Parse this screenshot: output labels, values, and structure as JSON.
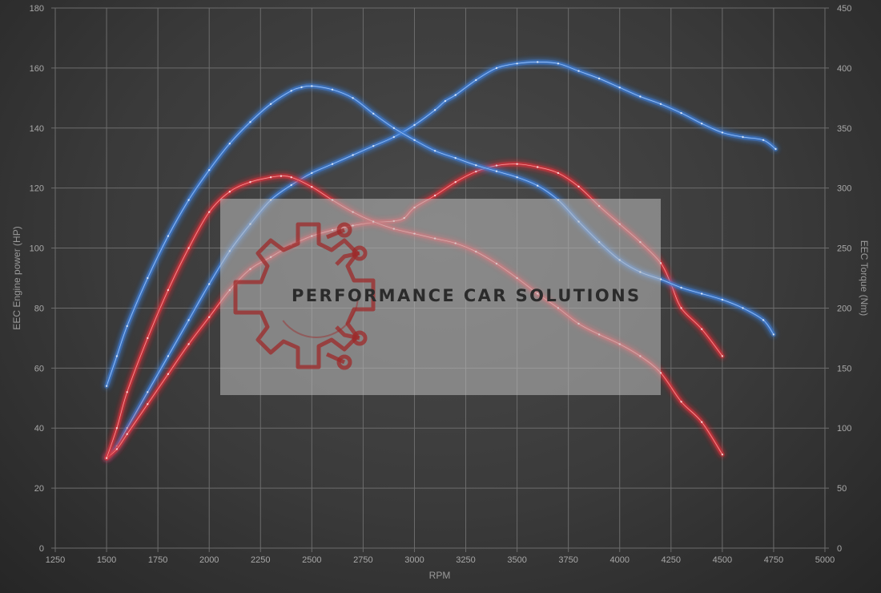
{
  "chart_data": {
    "type": "line",
    "xlabel": "RPM",
    "ylabel_left": "EEC Engine power (HP)",
    "ylabel_right": "EEC Torque (Nm)",
    "xlim": [
      1250,
      5000
    ],
    "ylim_left": [
      0,
      180
    ],
    "ylim_right": [
      0,
      450
    ],
    "x_ticks": [
      "1250",
      "1500",
      "1750",
      "2000",
      "2250",
      "2500",
      "2750",
      "3000",
      "3250",
      "3500",
      "3750",
      "4000",
      "4250",
      "4500",
      "4750",
      "5000"
    ],
    "y_ticks_left": [
      "0",
      "20",
      "40",
      "60",
      "80",
      "100",
      "120",
      "140",
      "160",
      "180"
    ],
    "y_ticks_right": [
      "0",
      "50",
      "100",
      "150",
      "200",
      "250",
      "300",
      "350",
      "400",
      "450"
    ],
    "grid": true,
    "series": [
      {
        "axis": "left",
        "color": "#3f7fd8",
        "x": [
          1500,
          1550,
          1600,
          1700,
          1800,
          1900,
          2000,
          2100,
          2200,
          2300,
          2400,
          2500,
          2600,
          2700,
          2800,
          2900,
          3000,
          3100,
          3150,
          3200,
          3300,
          3400,
          3500,
          3600,
          3700,
          3800,
          3900,
          4000,
          4100,
          4200,
          4300,
          4400,
          4500,
          4600,
          4700,
          4760
        ],
        "values": [
          30,
          34,
          40,
          52,
          64,
          76,
          88,
          99,
          108,
          116,
          121,
          125,
          128,
          131,
          134,
          137,
          141,
          146,
          149,
          151,
          156,
          160,
          161.5,
          162,
          161.5,
          159,
          156.5,
          153.5,
          150.5,
          148,
          145,
          141.5,
          138.5,
          137,
          136,
          133
        ]
      },
      {
        "axis": "left",
        "color": "#d8343a",
        "x": [
          1500,
          1550,
          1600,
          1700,
          1800,
          1900,
          2000,
          2100,
          2200,
          2300,
          2400,
          2500,
          2600,
          2700,
          2800,
          2900,
          2950,
          3000,
          3100,
          3200,
          3300,
          3400,
          3500,
          3600,
          3700,
          3800,
          3900,
          4000,
          4100,
          4200,
          4250,
          4300,
          4400,
          4500
        ],
        "values": [
          30,
          33,
          38,
          48,
          58,
          68,
          77,
          86,
          93,
          97,
          101,
          104,
          106,
          107.5,
          108.5,
          109,
          110,
          113.5,
          117.5,
          122,
          125.5,
          127.5,
          128,
          127,
          125,
          120.5,
          114,
          108,
          102,
          95,
          88,
          80,
          73,
          64
        ]
      },
      {
        "axis": "right",
        "color": "#3f7fd8",
        "x": [
          1500,
          1550,
          1600,
          1700,
          1800,
          1900,
          2000,
          2100,
          2200,
          2300,
          2400,
          2450,
          2500,
          2600,
          2700,
          2800,
          2900,
          3000,
          3100,
          3200,
          3300,
          3400,
          3500,
          3600,
          3700,
          3800,
          3900,
          4000,
          4100,
          4200,
          4300,
          4400,
          4500,
          4600,
          4700,
          4750
        ],
        "values": [
          135,
          160,
          185,
          225,
          260,
          290,
          315,
          337,
          355,
          370,
          381,
          384,
          385,
          382,
          375,
          362,
          350,
          340,
          331,
          325,
          319,
          314,
          309,
          302,
          290,
          272,
          255,
          240,
          230,
          224,
          217,
          212,
          207,
          200,
          190,
          178
        ]
      },
      {
        "axis": "right",
        "color": "#d8343a",
        "x": [
          1500,
          1550,
          1600,
          1700,
          1800,
          1900,
          2000,
          2100,
          2200,
          2300,
          2350,
          2400,
          2500,
          2600,
          2700,
          2800,
          2900,
          3000,
          3100,
          3200,
          3300,
          3400,
          3500,
          3600,
          3700,
          3800,
          3900,
          4000,
          4100,
          4200,
          4300,
          4400,
          4500
        ],
        "values": [
          75,
          100,
          130,
          175,
          215,
          250,
          280,
          297,
          305,
          309,
          310,
          309,
          301,
          290,
          280,
          272,
          266,
          262,
          258,
          254,
          247,
          237,
          225,
          212,
          200,
          187,
          178,
          170,
          160,
          146,
          122,
          105,
          78
        ]
      }
    ]
  },
  "watermark": {
    "text": "PERFORMANCE CAR SOLUTIONS",
    "logo": "gear-circuit-logo",
    "logo_color": "#9e2a2a"
  }
}
